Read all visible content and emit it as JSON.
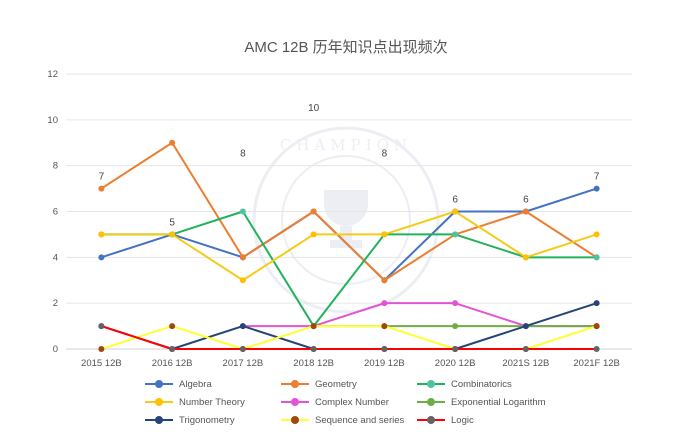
{
  "chart_data": {
    "type": "line",
    "title": "AMC 12B 历年知识点出现频次",
    "categories": [
      "2015 12B",
      "2016 12B",
      "2017 12B",
      "2018 12B",
      "2019 12B",
      "2020 12B",
      "2021S 12B",
      "2021F 12B"
    ],
    "ylim": [
      0,
      12
    ],
    "yticks": [
      "0",
      "2",
      "4",
      "6",
      "8",
      "10",
      "12"
    ],
    "grid": true,
    "legend_position": "bottom",
    "watermark": "CHAMPION",
    "series": [
      {
        "name": "Algebra",
        "color": "#4472c4",
        "values": [
          4,
          5,
          4,
          6,
          3,
          6,
          6,
          7
        ]
      },
      {
        "name": "Geometry",
        "color": "#ed7d31",
        "values": [
          7,
          9,
          4,
          6,
          3,
          5,
          6,
          4
        ]
      },
      {
        "name": "Combinatorics",
        "color": "#21b25d",
        "values": [
          5,
          5,
          6,
          1,
          5,
          5,
          4,
          4
        ]
      },
      {
        "name": "Number Theory",
        "color": "#f5cb1a",
        "values": [
          5,
          5,
          3,
          5,
          5,
          6,
          4,
          5
        ]
      },
      {
        "name": "Complex Number",
        "color": "#e254d5",
        "values": [
          null,
          null,
          1,
          1,
          2,
          2,
          1,
          1
        ]
      },
      {
        "name": "Exponential Logarithm",
        "color": "#70ad47",
        "values": [
          null,
          null,
          null,
          1,
          1,
          1,
          1,
          1
        ]
      },
      {
        "name": "Trigonometry",
        "color": "#264478",
        "values": [
          1,
          0,
          1,
          0,
          0,
          0,
          1,
          2
        ]
      },
      {
        "name": "Sequence and series",
        "color": "#ffff33",
        "values": [
          0,
          1,
          0,
          1,
          1,
          0,
          0,
          1
        ]
      },
      {
        "name": "Logic",
        "color": "#ff0000",
        "values": [
          1,
          0,
          0,
          0,
          0,
          0,
          0,
          0
        ]
      }
    ],
    "marker_colors": {
      "Algebra": "#4472c4",
      "Geometry": "#ed7d31",
      "Combinatorics": "#4ec3a1",
      "Number Theory": "#ffc000",
      "Complex Number": "#e254d5",
      "Exponential Logarithm": "#70ad47",
      "Trigonometry": "#264478",
      "Sequence and series": "#9e480e",
      "Logic": "#636363"
    },
    "data_labels": [
      {
        "category": "2015 12B",
        "value": 7,
        "text": "7"
      },
      {
        "category": "2016 12B",
        "value": 5,
        "text": "5"
      },
      {
        "category": "2017 12B",
        "value": 8,
        "text": "8"
      },
      {
        "category": "2018 12B",
        "value": 10,
        "text": "10"
      },
      {
        "category": "2019 12B",
        "value": 8,
        "text": "8"
      },
      {
        "category": "2020 12B",
        "value": 6,
        "text": "6"
      },
      {
        "category": "2021S 12B",
        "value": 6,
        "text": "6"
      },
      {
        "category": "2021F 12B",
        "value": 7,
        "text": "7"
      }
    ]
  }
}
